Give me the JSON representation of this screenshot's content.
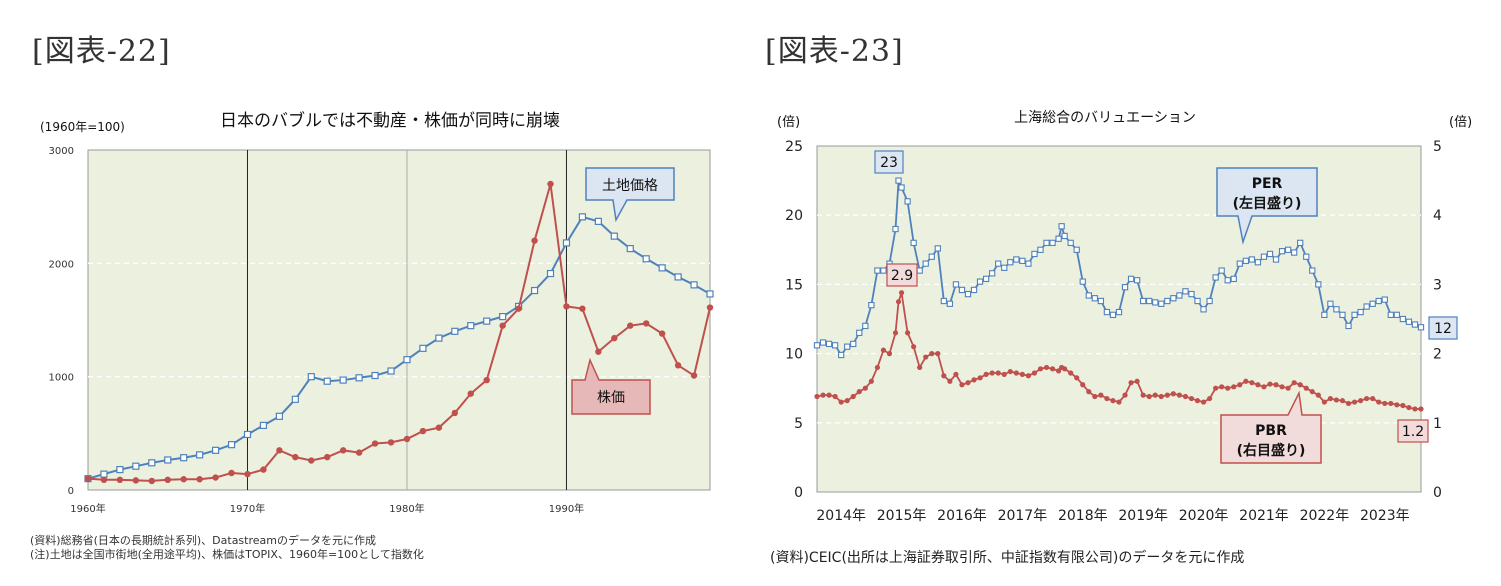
{
  "left_figure_label": "[図表-22]",
  "right_figure_label": "[図表-23]",
  "chart_data": [
    {
      "type": "line",
      "title": "日本のバブルでは不動産・株価が同時に崩壊",
      "ylabel": "(1960年=100)",
      "ylim": [
        0,
        3000
      ],
      "yticks": [
        0,
        1000,
        2000,
        3000
      ],
      "xlim": [
        1960,
        1999
      ],
      "xticks": [
        1960,
        1970,
        1980,
        1990
      ],
      "xtick_labels": [
        "1960年",
        "1970年",
        "1980年",
        "1990年"
      ],
      "grid": "horizontal dashed",
      "vertical_lines": [
        1970,
        1990
      ],
      "series": [
        {
          "name": "土地価格",
          "color": "#4f81bd",
          "marker": "square-open",
          "x": [
            1960,
            1961,
            1962,
            1963,
            1964,
            1965,
            1966,
            1967,
            1968,
            1969,
            1970,
            1971,
            1972,
            1973,
            1974,
            1975,
            1976,
            1977,
            1978,
            1979,
            1980,
            1981,
            1982,
            1983,
            1984,
            1985,
            1986,
            1987,
            1988,
            1989,
            1990,
            1991,
            1992,
            1993,
            1994,
            1995,
            1996,
            1997,
            1998,
            1999
          ],
          "y": [
            100,
            140,
            180,
            210,
            240,
            265,
            285,
            310,
            350,
            400,
            490,
            570,
            650,
            800,
            1000,
            960,
            970,
            990,
            1010,
            1050,
            1150,
            1250,
            1340,
            1400,
            1450,
            1490,
            1530,
            1620,
            1760,
            1910,
            2180,
            2410,
            2370,
            2240,
            2130,
            2040,
            1960,
            1880,
            1810,
            1730
          ]
        },
        {
          "name": "株価",
          "color": "#c0504d",
          "marker": "circle-filled",
          "x": [
            1960,
            1961,
            1962,
            1963,
            1964,
            1965,
            1966,
            1967,
            1968,
            1969,
            1970,
            1971,
            1972,
            1973,
            1974,
            1975,
            1976,
            1977,
            1978,
            1979,
            1980,
            1981,
            1982,
            1983,
            1984,
            1985,
            1986,
            1987,
            1988,
            1989,
            1990,
            1991,
            1992,
            1993,
            1994,
            1995,
            1996,
            1997,
            1998,
            1999
          ],
          "y": [
            100,
            90,
            90,
            85,
            80,
            90,
            95,
            95,
            110,
            150,
            140,
            180,
            350,
            290,
            260,
            290,
            350,
            330,
            410,
            420,
            450,
            520,
            550,
            680,
            850,
            970,
            1450,
            1600,
            2200,
            2700,
            1620,
            1600,
            1220,
            1340,
            1450,
            1470,
            1380,
            1100,
            1010,
            1610
          ]
        }
      ],
      "annotations": [
        {
          "label": "土地価格",
          "style": "blue callout"
        },
        {
          "label": "株価",
          "style": "red callout"
        }
      ],
      "source_lines": [
        "(資料)総務省(日本の長期統計系列)、Datastreamのデータを元に作成",
        "(注)土地は全国市街地(全用途平均)、株価はTOPIX、1960年=100として指数化"
      ]
    },
    {
      "type": "line",
      "title": "上海総合のバリュエーション",
      "ylabel_left": "(倍)",
      "ylabel_right": "(倍)",
      "ylim_left": [
        0,
        25
      ],
      "yticks_left": [
        0,
        5,
        10,
        15,
        20,
        25
      ],
      "ylim_right": [
        0,
        5
      ],
      "yticks_right": [
        0,
        1,
        2,
        3,
        4,
        5
      ],
      "xlim": [
        2014,
        2024
      ],
      "xtick_labels": [
        "2014年",
        "2015年",
        "2016年",
        "2017年",
        "2018年",
        "2019年",
        "2020年",
        "2021年",
        "2022年",
        "2023年"
      ],
      "grid": "horizontal dashed",
      "series": [
        {
          "name": "PER\n(左目盛り)",
          "axis": "left",
          "color": "#4f81bd",
          "marker": "square-open",
          "x": [
            2014.0,
            2014.1,
            2014.2,
            2014.3,
            2014.4,
            2014.5,
            2014.6,
            2014.7,
            2014.8,
            2014.9,
            2015.0,
            2015.1,
            2015.2,
            2015.3,
            2015.35,
            2015.4,
            2015.5,
            2015.6,
            2015.7,
            2015.8,
            2015.9,
            2016.0,
            2016.1,
            2016.2,
            2016.3,
            2016.4,
            2016.5,
            2016.6,
            2016.7,
            2016.8,
            2016.9,
            2017.0,
            2017.1,
            2017.2,
            2017.3,
            2017.4,
            2017.5,
            2017.6,
            2017.7,
            2017.8,
            2017.9,
            2018.0,
            2018.05,
            2018.1,
            2018.2,
            2018.3,
            2018.4,
            2018.5,
            2018.6,
            2018.7,
            2018.8,
            2018.9,
            2019.0,
            2019.1,
            2019.2,
            2019.3,
            2019.4,
            2019.5,
            2019.6,
            2019.7,
            2019.8,
            2019.9,
            2020.0,
            2020.1,
            2020.2,
            2020.3,
            2020.4,
            2020.5,
            2020.6,
            2020.7,
            2020.8,
            2020.9,
            2021.0,
            2021.1,
            2021.2,
            2021.3,
            2021.4,
            2021.5,
            2021.6,
            2021.7,
            2021.8,
            2021.9,
            2022.0,
            2022.1,
            2022.2,
            2022.3,
            2022.4,
            2022.5,
            2022.6,
            2022.7,
            2022.8,
            2022.9,
            2023.0,
            2023.1,
            2023.2,
            2023.3,
            2023.4,
            2023.5,
            2023.6,
            2023.7,
            2023.8,
            2023.9,
            2024.0
          ],
          "y": [
            10.6,
            10.8,
            10.7,
            10.6,
            9.9,
            10.5,
            10.7,
            11.5,
            12.0,
            13.5,
            16.0,
            16.0,
            16.5,
            19.0,
            22.5,
            22.0,
            21.0,
            18.0,
            16.0,
            16.5,
            17.0,
            17.6,
            13.8,
            13.6,
            15.0,
            14.6,
            14.3,
            14.6,
            15.2,
            15.4,
            15.8,
            16.5,
            16.2,
            16.6,
            16.8,
            16.7,
            16.5,
            17.2,
            17.5,
            18.0,
            18.0,
            18.3,
            19.2,
            18.5,
            18.0,
            17.5,
            15.2,
            14.2,
            14.0,
            13.8,
            13.0,
            12.8,
            13.0,
            14.8,
            15.4,
            15.3,
            13.8,
            13.8,
            13.7,
            13.6,
            13.8,
            14.0,
            14.2,
            14.5,
            14.3,
            13.8,
            13.2,
            13.8,
            15.5,
            16.0,
            15.3,
            15.4,
            16.5,
            16.7,
            16.8,
            16.6,
            17.0,
            17.2,
            16.8,
            17.4,
            17.5,
            17.3,
            18.0,
            17.0,
            16.0,
            15.0,
            12.8,
            13.6,
            13.2,
            12.8,
            12.0,
            12.8,
            13.0,
            13.4,
            13.6,
            13.8,
            13.9,
            12.8,
            12.8,
            12.5,
            12.3,
            12.1,
            11.9
          ]
        },
        {
          "name": "PBR\n(右目盛り)",
          "axis": "right",
          "color": "#c0504d",
          "marker": "circle-filled",
          "x": [
            2014.0,
            2014.1,
            2014.2,
            2014.3,
            2014.4,
            2014.5,
            2014.6,
            2014.7,
            2014.8,
            2014.9,
            2015.0,
            2015.1,
            2015.2,
            2015.3,
            2015.35,
            2015.4,
            2015.5,
            2015.6,
            2015.7,
            2015.8,
            2015.9,
            2016.0,
            2016.1,
            2016.2,
            2016.3,
            2016.4,
            2016.5,
            2016.6,
            2016.7,
            2016.8,
            2016.9,
            2017.0,
            2017.1,
            2017.2,
            2017.3,
            2017.4,
            2017.5,
            2017.6,
            2017.7,
            2017.8,
            2017.9,
            2018.0,
            2018.05,
            2018.1,
            2018.2,
            2018.3,
            2018.4,
            2018.5,
            2018.6,
            2018.7,
            2018.8,
            2018.9,
            2019.0,
            2019.1,
            2019.2,
            2019.3,
            2019.4,
            2019.5,
            2019.6,
            2019.7,
            2019.8,
            2019.9,
            2020.0,
            2020.1,
            2020.2,
            2020.3,
            2020.4,
            2020.5,
            2020.6,
            2020.7,
            2020.8,
            2020.9,
            2021.0,
            2021.1,
            2021.2,
            2021.3,
            2021.4,
            2021.5,
            2021.6,
            2021.7,
            2021.8,
            2021.9,
            2022.0,
            2022.1,
            2022.2,
            2022.3,
            2022.4,
            2022.5,
            2022.6,
            2022.7,
            2022.8,
            2022.9,
            2023.0,
            2023.1,
            2023.2,
            2023.3,
            2023.4,
            2023.5,
            2023.6,
            2023.7,
            2023.8,
            2023.9,
            2024.0
          ],
          "y": [
            1.38,
            1.4,
            1.4,
            1.38,
            1.3,
            1.32,
            1.38,
            1.45,
            1.5,
            1.6,
            1.8,
            2.05,
            2.0,
            2.3,
            2.75,
            2.88,
            2.3,
            2.1,
            1.8,
            1.95,
            2.0,
            2.0,
            1.68,
            1.6,
            1.7,
            1.55,
            1.58,
            1.62,
            1.65,
            1.7,
            1.72,
            1.72,
            1.7,
            1.74,
            1.72,
            1.7,
            1.68,
            1.72,
            1.78,
            1.8,
            1.78,
            1.75,
            1.8,
            1.78,
            1.72,
            1.65,
            1.55,
            1.45,
            1.38,
            1.4,
            1.35,
            1.32,
            1.3,
            1.4,
            1.58,
            1.6,
            1.4,
            1.38,
            1.4,
            1.38,
            1.4,
            1.42,
            1.4,
            1.38,
            1.35,
            1.32,
            1.3,
            1.35,
            1.5,
            1.52,
            1.5,
            1.52,
            1.55,
            1.6,
            1.58,
            1.55,
            1.52,
            1.56,
            1.55,
            1.52,
            1.5,
            1.58,
            1.55,
            1.5,
            1.45,
            1.4,
            1.3,
            1.35,
            1.33,
            1.32,
            1.28,
            1.3,
            1.32,
            1.35,
            1.35,
            1.3,
            1.28,
            1.28,
            1.26,
            1.25,
            1.22,
            1.2,
            1.2
          ]
        }
      ],
      "point_labels": [
        {
          "series": "PER",
          "text": "23"
        },
        {
          "series": "PER",
          "text": "12"
        },
        {
          "series": "PBR",
          "text": "2.9"
        },
        {
          "series": "PBR",
          "text": "1.2"
        }
      ],
      "source_lines": [
        "(資料)CEIC(出所は上海証券取引所、中証指数有限公司)のデータを元に作成"
      ]
    }
  ]
}
